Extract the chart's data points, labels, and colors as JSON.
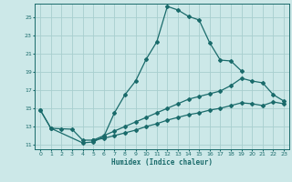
{
  "xlabel": "Humidex (Indice chaleur)",
  "bg_color": "#cce8e8",
  "line_color": "#1a6b6b",
  "grid_color": "#a8cece",
  "xlim": [
    -0.5,
    23.5
  ],
  "ylim": [
    10.5,
    26.5
  ],
  "xticks": [
    0,
    1,
    2,
    3,
    4,
    5,
    6,
    7,
    8,
    9,
    10,
    11,
    12,
    13,
    14,
    15,
    16,
    17,
    18,
    19,
    20,
    21,
    22,
    23
  ],
  "yticks": [
    11,
    13,
    15,
    17,
    19,
    21,
    23,
    25
  ],
  "line_main": {
    "x": [
      0,
      1,
      4,
      5,
      6,
      7,
      8,
      9,
      10,
      11,
      12,
      13,
      14,
      15,
      16,
      17,
      18,
      19
    ],
    "y": [
      14.8,
      12.8,
      11.2,
      11.3,
      11.9,
      14.5,
      16.5,
      18.0,
      20.4,
      22.3,
      26.2,
      25.8,
      25.1,
      24.7,
      22.2,
      20.3,
      20.2,
      19.1
    ]
  },
  "line_short": {
    "x": [
      0,
      1,
      2,
      3,
      4,
      5
    ],
    "y": [
      14.8,
      12.8,
      12.75,
      12.7,
      11.5,
      11.5
    ]
  },
  "line_upper": {
    "x": [
      5,
      6,
      7,
      8,
      9,
      10,
      11,
      12,
      13,
      14,
      15,
      16,
      17,
      18,
      19,
      20,
      21,
      22,
      23
    ],
    "y": [
      11.5,
      12.0,
      12.5,
      13.0,
      13.5,
      14.0,
      14.5,
      15.0,
      15.5,
      16.0,
      16.3,
      16.6,
      16.9,
      17.5,
      18.3,
      18.0,
      17.8,
      16.5,
      15.8
    ]
  },
  "line_lower": {
    "x": [
      5,
      6,
      7,
      8,
      9,
      10,
      11,
      12,
      13,
      14,
      15,
      16,
      17,
      18,
      19,
      20,
      21,
      22,
      23
    ],
    "y": [
      11.5,
      11.7,
      12.0,
      12.3,
      12.6,
      13.0,
      13.3,
      13.7,
      14.0,
      14.3,
      14.5,
      14.8,
      15.0,
      15.3,
      15.6,
      15.5,
      15.3,
      15.7,
      15.5
    ]
  }
}
